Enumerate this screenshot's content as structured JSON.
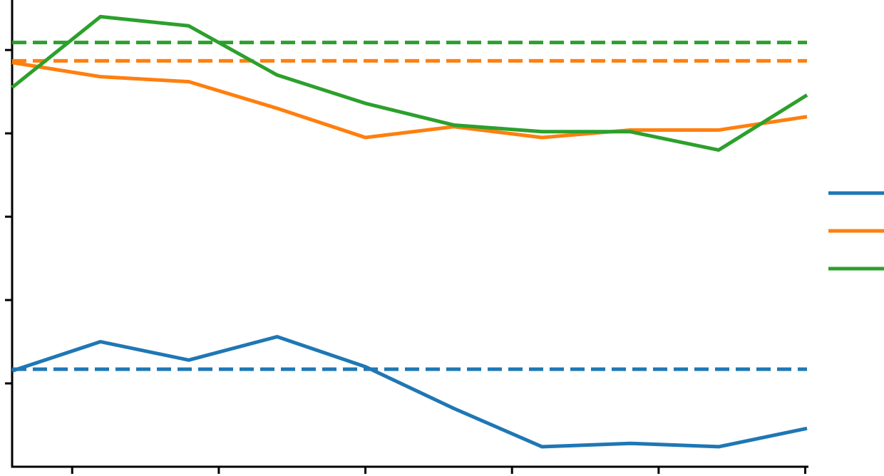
{
  "chart_data": {
    "type": "line",
    "title": "",
    "xlabel": "",
    "ylabel": "",
    "x": [
      0,
      1,
      2,
      3,
      4,
      5,
      6,
      7,
      8,
      9
    ],
    "xlim": [
      0,
      9
    ],
    "ylim": [
      0,
      5.6
    ],
    "xticks": [
      0.68,
      2.34,
      4,
      5.66,
      7.32,
      8.98
    ],
    "yticks": [
      1,
      2,
      3,
      4,
      5
    ],
    "grid": false,
    "legend_position": "right",
    "series": [
      {
        "color": "#1f77b4",
        "values": [
          1.15,
          1.5,
          1.28,
          1.56,
          1.2,
          0.7,
          0.24,
          0.28,
          0.24,
          0.46
        ],
        "reference": 1.17
      },
      {
        "color": "#ff7f0e",
        "values": [
          4.85,
          4.68,
          4.62,
          4.3,
          3.95,
          4.08,
          3.95,
          4.04,
          4.04,
          4.2
        ],
        "reference": 4.87
      },
      {
        "color": "#2ca02c",
        "values": [
          4.55,
          5.4,
          5.29,
          4.7,
          4.36,
          4.1,
          4.02,
          4.02,
          3.8,
          4.46
        ],
        "reference": 5.09
      }
    ]
  }
}
